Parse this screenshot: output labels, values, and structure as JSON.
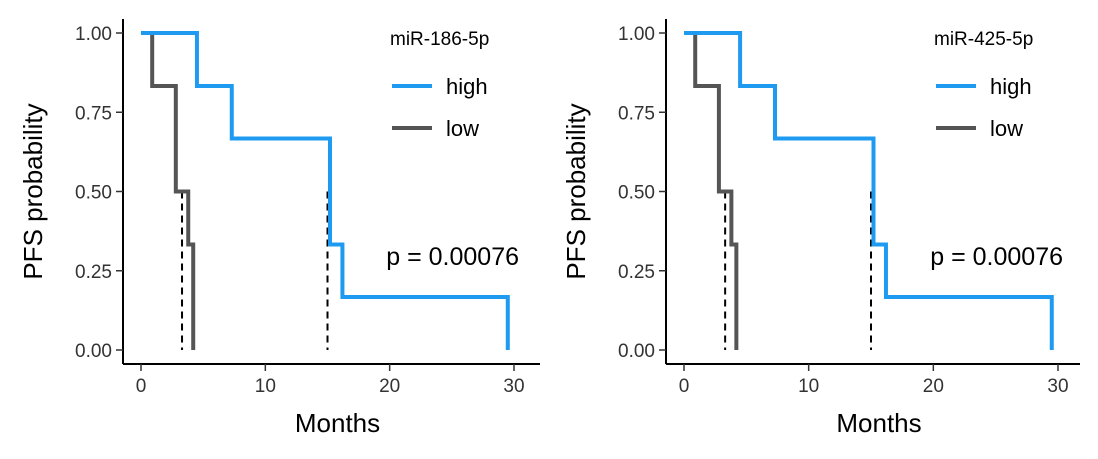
{
  "chart_data": [
    {
      "type": "line",
      "subtype": "kaplan-meier",
      "title": "",
      "xlabel": "Months",
      "ylabel": "PFS probability",
      "xlim": [
        0,
        30
      ],
      "ylim": [
        0,
        1
      ],
      "x_ticks": [
        0,
        10,
        20,
        30
      ],
      "y_ticks": [
        "0.00",
        "0.25",
        "0.50",
        "0.75",
        "1.00"
      ],
      "grid": false,
      "legend": {
        "title": "miR-186-5p",
        "position": "top-right"
      },
      "annotation": "p = 0.00076",
      "median_lines": [
        3.3,
        15.0
      ],
      "series": [
        {
          "name": "high",
          "color": "#1e9bf0",
          "x": [
            0,
            4.5,
            4.5,
            7.3,
            7.3,
            15.2,
            15.2,
            16.2,
            16.2,
            29.5,
            29.5
          ],
          "y": [
            1.0,
            1.0,
            0.833,
            0.833,
            0.667,
            0.667,
            0.333,
            0.333,
            0.167,
            0.167,
            0.0
          ]
        },
        {
          "name": "low",
          "color": "#555555",
          "x": [
            0.3,
            0.9,
            0.9,
            2.8,
            2.8,
            3.0,
            3.0,
            3.8,
            3.8,
            4.2,
            4.2
          ],
          "y": [
            1.0,
            1.0,
            0.833,
            0.833,
            0.5,
            0.5,
            0.5,
            0.5,
            0.333,
            0.333,
            0.0
          ]
        }
      ]
    },
    {
      "type": "line",
      "subtype": "kaplan-meier",
      "title": "",
      "xlabel": "Months",
      "ylabel": "PFS probability",
      "xlim": [
        0,
        30
      ],
      "ylim": [
        0,
        1
      ],
      "x_ticks": [
        0,
        10,
        20,
        30
      ],
      "y_ticks": [
        "0.00",
        "0.25",
        "0.50",
        "0.75",
        "1.00"
      ],
      "grid": false,
      "legend": {
        "title": "miR-425-5p",
        "position": "top-right"
      },
      "annotation": "p = 0.00076",
      "median_lines": [
        3.3,
        15.0
      ],
      "series": [
        {
          "name": "high",
          "color": "#1e9bf0",
          "x": [
            0,
            4.5,
            4.5,
            7.3,
            7.3,
            15.2,
            15.2,
            16.2,
            16.2,
            29.5,
            29.5
          ],
          "y": [
            1.0,
            1.0,
            0.833,
            0.833,
            0.667,
            0.667,
            0.333,
            0.333,
            0.167,
            0.167,
            0.0
          ]
        },
        {
          "name": "low",
          "color": "#555555",
          "x": [
            0.3,
            0.9,
            0.9,
            2.8,
            2.8,
            3.0,
            3.0,
            3.8,
            3.8,
            4.2,
            4.2
          ],
          "y": [
            1.0,
            1.0,
            0.833,
            0.833,
            0.5,
            0.5,
            0.5,
            0.5,
            0.333,
            0.333,
            0.0
          ]
        }
      ]
    }
  ]
}
